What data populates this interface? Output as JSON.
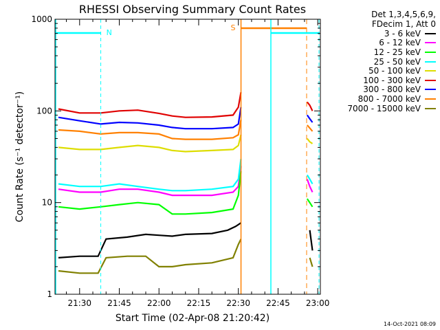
{
  "chart_data": {
    "type": "line",
    "title": "RHESSI Observing Summary Count Rates",
    "xlabel": "Start Time (02-Apr-08 21:20:42)",
    "ylabel": "Count Rate (s⁻¹ detector⁻¹)",
    "x_units": "time of day (HH:MM)",
    "xlim": [
      "21:20:42",
      "23:01"
    ],
    "x_ticks": [
      "21:30",
      "21:45",
      "22:00",
      "22:15",
      "22:30",
      "22:45",
      "23:00"
    ],
    "y_scale": "log",
    "ylim": [
      1,
      1000
    ],
    "y_ticks": [
      "1",
      "10",
      "100",
      "1000"
    ],
    "grid": false,
    "legend_position": "right",
    "series": [
      {
        "name": "3 - 6 keV",
        "color": "#000000",
        "x": [
          "21:22",
          "21:30",
          "21:37",
          "21:40",
          "21:48",
          "21:55",
          "22:00",
          "22:05",
          "22:10",
          "22:20",
          "22:26",
          "22:29",
          "22:31",
          "22:57",
          "22:58"
        ],
        "values": [
          2.5,
          2.6,
          2.6,
          4.0,
          4.2,
          4.5,
          4.4,
          4.3,
          4.5,
          4.6,
          5.0,
          5.5,
          6,
          5,
          3
        ]
      },
      {
        "name": "6 - 12 keV",
        "color": "#ff00ff",
        "x": [
          "21:22",
          "21:30",
          "21:38",
          "21:45",
          "21:52",
          "22:00",
          "22:05",
          "22:10",
          "22:20",
          "22:28",
          "22:30",
          "22:31",
          "22:56",
          "22:57",
          "22:58"
        ],
        "values": [
          14,
          13,
          13,
          14,
          14,
          13,
          12,
          12,
          12,
          13,
          15,
          25,
          18,
          15,
          13
        ]
      },
      {
        "name": "12 - 25 keV",
        "color": "#00ff00",
        "x": [
          "21:22",
          "21:30",
          "21:38",
          "21:45",
          "21:52",
          "22:00",
          "22:05",
          "22:10",
          "22:20",
          "22:28",
          "22:30",
          "22:31",
          "22:56",
          "22:57",
          "22:58"
        ],
        "values": [
          9,
          8.5,
          9,
          9.5,
          10,
          9.5,
          7.5,
          7.5,
          7.8,
          8.5,
          12,
          22,
          11,
          10,
          9
        ]
      },
      {
        "name": "25 - 50 keV",
        "color": "#00ffff",
        "x": [
          "21:22",
          "21:30",
          "21:38",
          "21:45",
          "21:52",
          "22:00",
          "22:05",
          "22:10",
          "22:20",
          "22:28",
          "22:30",
          "22:31",
          "22:56",
          "22:57",
          "22:58"
        ],
        "values": [
          16,
          15,
          15,
          16,
          15,
          14,
          13.5,
          13.5,
          14,
          15,
          18,
          30,
          20,
          18,
          16
        ]
      },
      {
        "name": "50 - 100 keV",
        "color": "#dddd00",
        "x": [
          "21:22",
          "21:30",
          "21:38",
          "21:45",
          "21:52",
          "22:00",
          "22:05",
          "22:10",
          "22:20",
          "22:28",
          "22:30",
          "22:31",
          "22:56",
          "22:57",
          "22:58"
        ],
        "values": [
          40,
          38,
          38,
          40,
          42,
          40,
          37,
          36,
          37,
          38,
          42,
          55,
          50,
          46,
          44
        ]
      },
      {
        "name": "100 - 300 keV",
        "color": "#e00000",
        "x": [
          "21:22",
          "21:30",
          "21:38",
          "21:45",
          "21:52",
          "22:00",
          "22:05",
          "22:10",
          "22:20",
          "22:28",
          "22:30",
          "22:31",
          "22:56",
          "22:57",
          "22:58"
        ],
        "values": [
          105,
          95,
          95,
          100,
          102,
          94,
          88,
          85,
          86,
          90,
          110,
          160,
          125,
          115,
          100
        ]
      },
      {
        "name": "300 - 800 keV",
        "color": "#0000ff",
        "x": [
          "21:22",
          "21:30",
          "21:38",
          "21:45",
          "21:52",
          "22:00",
          "22:05",
          "22:10",
          "22:20",
          "22:28",
          "22:30",
          "22:31",
          "22:56",
          "22:57",
          "22:58"
        ],
        "values": [
          85,
          78,
          72,
          75,
          74,
          70,
          66,
          64,
          64,
          66,
          72,
          110,
          90,
          82,
          75
        ]
      },
      {
        "name": "800 - 7000 keV",
        "color": "#ff8000",
        "x": [
          "21:22",
          "21:30",
          "21:38",
          "21:45",
          "21:52",
          "22:00",
          "22:05",
          "22:10",
          "22:20",
          "22:28",
          "22:30",
          "22:31",
          "22:56",
          "22:57",
          "22:58"
        ],
        "values": [
          62,
          60,
          56,
          58,
          58,
          56,
          50,
          49,
          49,
          51,
          55,
          80,
          70,
          65,
          60
        ]
      },
      {
        "name": "7000 - 15000 keV",
        "color": "#808000",
        "x": [
          "21:22",
          "21:30",
          "21:37",
          "21:40",
          "21:48",
          "21:55",
          "22:00",
          "22:05",
          "22:10",
          "22:20",
          "22:28",
          "22:30",
          "22:31",
          "22:57",
          "22:58"
        ],
        "values": [
          1.8,
          1.7,
          1.7,
          2.5,
          2.6,
          2.6,
          2.0,
          2.0,
          2.1,
          2.2,
          2.5,
          3.5,
          4,
          2.5,
          2
        ]
      }
    ],
    "annotations": [
      {
        "label": "N",
        "color": "#00ffff",
        "x": "21:38"
      },
      {
        "label": "S",
        "color": "#ff8000",
        "x": "22:31"
      }
    ],
    "legend_header": [
      "Det 1,3,4,5,6,9,",
      "FDecim 1, Att 0"
    ],
    "timestamp": "14-Oct-2021 08:09"
  }
}
